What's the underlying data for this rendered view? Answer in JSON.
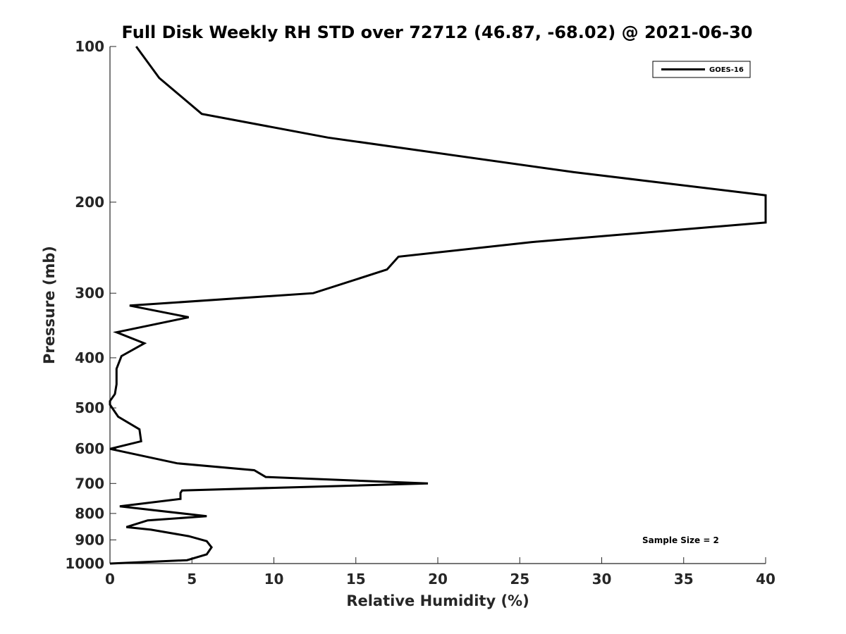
{
  "chart_data": {
    "type": "line",
    "title": "Full Disk Weekly RH STD over 72712 (46.87, -68.02) @ 2021-06-30",
    "xlabel": "Relative Humidity (%)",
    "ylabel": "Pressure (mb)",
    "xlim": [
      0,
      40
    ],
    "ylim": [
      100,
      1000
    ],
    "y_scale": "log",
    "y_reversed": true,
    "grid": false,
    "legend_position": "top-right",
    "x_ticks": [
      0,
      5,
      10,
      15,
      20,
      25,
      30,
      35,
      40
    ],
    "y_ticks": [
      100,
      200,
      300,
      400,
      500,
      600,
      700,
      800,
      900,
      1000
    ],
    "annotation": "Sample Size = 2",
    "series": [
      {
        "name": "GOES-16",
        "color": "#000000",
        "points": [
          [
            1.6,
            100
          ],
          [
            3.0,
            115
          ],
          [
            5.6,
            135
          ],
          [
            13.3,
            150
          ],
          [
            28.3,
            175
          ],
          [
            40,
            194
          ],
          [
            40,
            219
          ],
          [
            25.7,
            239
          ],
          [
            17.6,
            255
          ],
          [
            16.9,
            270
          ],
          [
            12.4,
            300
          ],
          [
            1.2,
            317
          ],
          [
            4.8,
            334
          ],
          [
            0.4,
            357
          ],
          [
            2.1,
            375
          ],
          [
            0.7,
            397
          ],
          [
            0.4,
            420
          ],
          [
            0.4,
            450
          ],
          [
            0.3,
            470
          ],
          [
            0.0,
            485
          ],
          [
            0.0,
            493
          ],
          [
            0.5,
            520
          ],
          [
            1.8,
            550
          ],
          [
            1.9,
            580
          ],
          [
            0.0,
            600
          ],
          [
            4.1,
            640
          ],
          [
            8.8,
            660
          ],
          [
            9.5,
            680
          ],
          [
            19.4,
            700
          ],
          [
            4.4,
            722
          ],
          [
            4.3,
            730
          ],
          [
            4.3,
            750
          ],
          [
            0.6,
            775
          ],
          [
            5.9,
            810
          ],
          [
            2.3,
            825
          ],
          [
            1.0,
            850
          ],
          [
            2.5,
            860
          ],
          [
            4.8,
            885
          ],
          [
            5.9,
            905
          ],
          [
            6.2,
            930
          ],
          [
            5.9,
            960
          ],
          [
            4.7,
            985
          ],
          [
            0.0,
            1000
          ]
        ]
      }
    ]
  }
}
